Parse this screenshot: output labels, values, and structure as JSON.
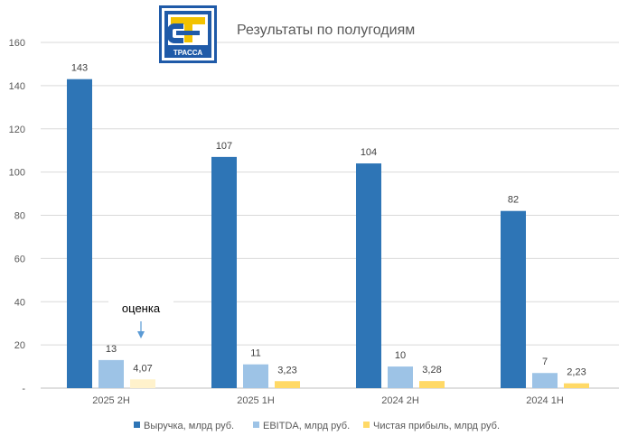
{
  "logo": {
    "text": "ТРАССА"
  },
  "chart_data": {
    "type": "bar",
    "title": "Результаты по полугодиям",
    "xlabel": "",
    "ylabel": "",
    "ylim": [
      0,
      160
    ],
    "yticks": [
      "-",
      "20",
      "40",
      "60",
      "80",
      "100",
      "120",
      "140",
      "160"
    ],
    "categories": [
      "2025 2H",
      "2025 1H",
      "2024 2H",
      "2024 1H"
    ],
    "grid": true,
    "legend_position": "bottom",
    "series": [
      {
        "name": "Выручка, млрд руб.",
        "color": "#2e75b6",
        "values": [
          143,
          107,
          104,
          82
        ],
        "labels": [
          "143",
          "107",
          "104",
          "82"
        ]
      },
      {
        "name": "EBITDA, млрд руб.",
        "color": "#9dc3e6",
        "values": [
          13,
          11,
          10,
          7
        ],
        "labels": [
          "13",
          "11",
          "10",
          "7"
        ]
      },
      {
        "name": "Чистая прибыль, млрд руб.",
        "color": "#ffd966",
        "values": [
          4.07,
          3.23,
          3.28,
          2.23
        ],
        "labels": [
          "4,07",
          "3,23",
          "3,28",
          "2,23"
        ],
        "estimate_color": "#fff2cc"
      }
    ],
    "annotation": {
      "text": "оценка",
      "category_index": 0,
      "series_index": 2
    }
  }
}
